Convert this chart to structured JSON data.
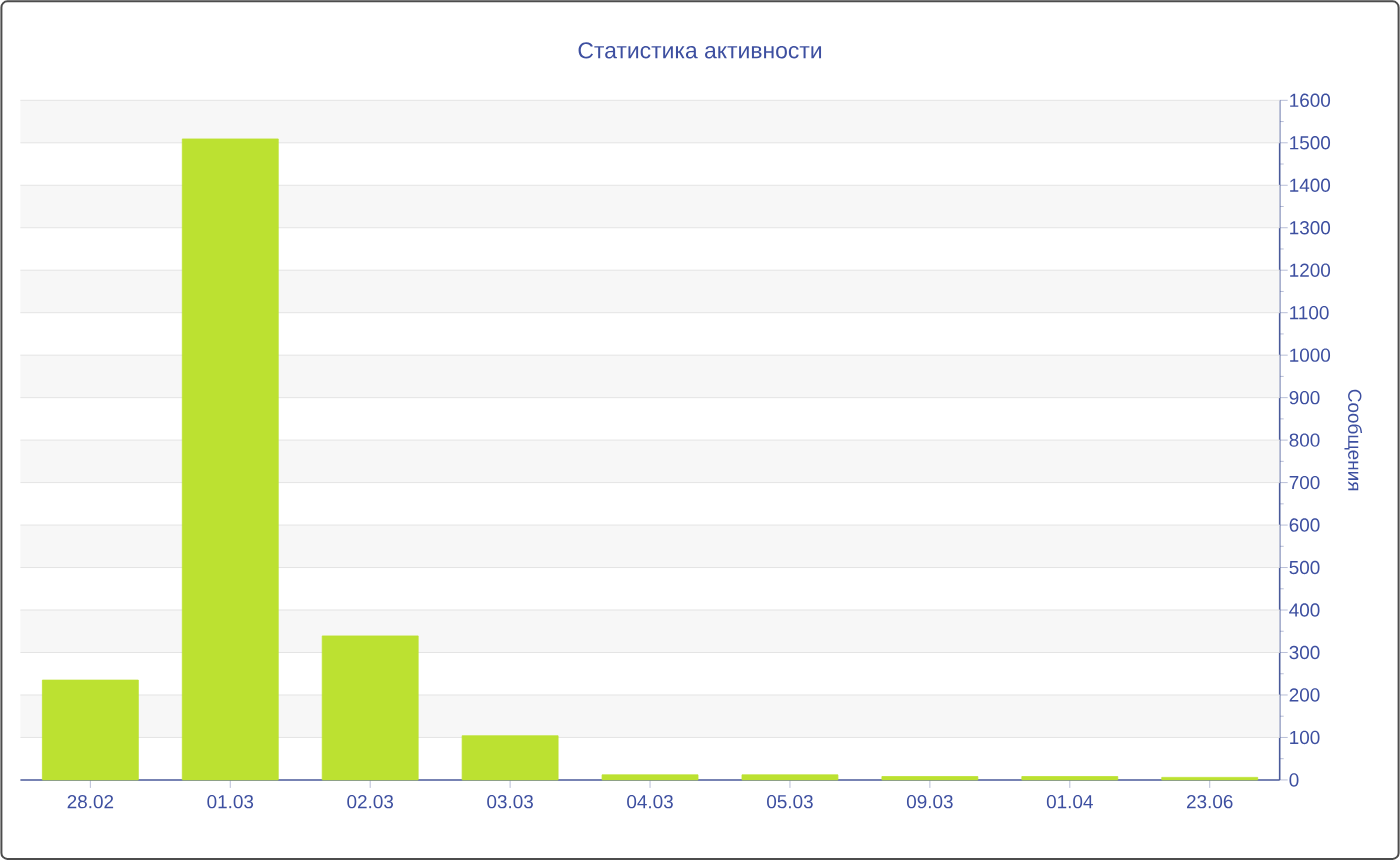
{
  "chart_data": {
    "type": "bar",
    "title": "Статистика активности",
    "ylabel": "Сообщения",
    "categories": [
      "28.02",
      "01.03",
      "02.03",
      "03.03",
      "04.03",
      "05.03",
      "09.03",
      "01.04",
      "23.06"
    ],
    "values": [
      235,
      1509,
      339,
      104,
      12,
      12,
      8,
      8,
      6
    ],
    "color": "#bce131",
    "ylim": [
      0,
      1600
    ],
    "yticks": [
      0,
      100,
      200,
      300,
      400,
      500,
      600,
      700,
      800,
      900,
      1000,
      1100,
      1200,
      1300,
      1400,
      1500,
      1600
    ],
    "grid": "y"
  }
}
